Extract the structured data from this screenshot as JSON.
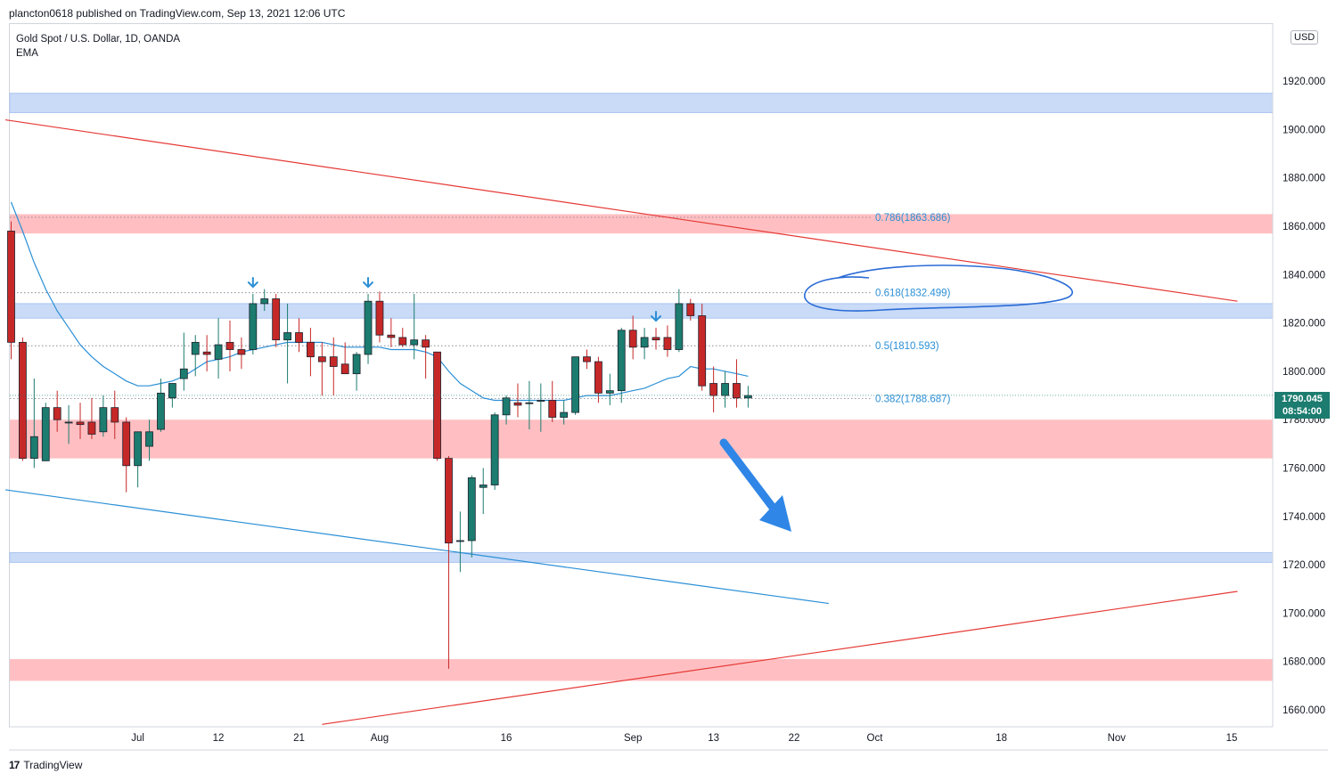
{
  "header": {
    "published": "plancton0618 published on TradingView.com, Sep 13, 2021 12:06 UTC"
  },
  "symbol": {
    "title": "Gold Spot / U.S. Dollar, 1D, OANDA",
    "indicator": "EMA"
  },
  "price_axis": {
    "currency": "USD",
    "last_price": "1790.045",
    "countdown": "08:54:00"
  },
  "footer": {
    "brand": "TradingView"
  },
  "colors": {
    "up": "#1b7c6f",
    "down": "#c62828",
    "ema": "#2a8fd6",
    "support_zone": "#c9dbf7",
    "resistance_zone": "#ffbfc2",
    "trendline_red": "#e53935",
    "trendline_blue": "#2a8fd6"
  },
  "chart_data": {
    "type": "candlestick",
    "title": "Gold Spot / U.S. Dollar, 1D, OANDA",
    "ylim": [
      1653,
      1944
    ],
    "y_ticks": [
      1660,
      1680,
      1700,
      1720,
      1740,
      1760,
      1780,
      1800,
      1820,
      1840,
      1860,
      1880,
      1900,
      1920
    ],
    "x_ticks": [
      {
        "label": "Jul",
        "i": 11
      },
      {
        "label": "12",
        "i": 18
      },
      {
        "label": "21",
        "i": 25
      },
      {
        "label": "Aug",
        "i": 32
      },
      {
        "label": "16",
        "i": 43
      },
      {
        "label": "Sep",
        "i": 54
      },
      {
        "label": "13",
        "i": 61
      },
      {
        "label": "22",
        "i": 68
      },
      {
        "label": "Oct",
        "i": 75
      },
      {
        "label": "18",
        "i": 86
      },
      {
        "label": "Nov",
        "i": 96
      },
      {
        "label": "15",
        "i": 106
      }
    ],
    "candles": [
      {
        "o": 1858,
        "h": 1862,
        "l": 1805,
        "c": 1812
      },
      {
        "o": 1812,
        "h": 1814,
        "l": 1763,
        "c": 1764
      },
      {
        "o": 1764,
        "h": 1797,
        "l": 1760,
        "c": 1773
      },
      {
        "o": 1763,
        "h": 1787,
        "l": 1763,
        "c": 1785
      },
      {
        "o": 1785,
        "h": 1792,
        "l": 1775,
        "c": 1780
      },
      {
        "o": 1779,
        "h": 1786,
        "l": 1770,
        "c": 1779
      },
      {
        "o": 1779,
        "h": 1787,
        "l": 1772,
        "c": 1778
      },
      {
        "o": 1779,
        "h": 1789,
        "l": 1772,
        "c": 1774
      },
      {
        "o": 1775,
        "h": 1790,
        "l": 1773,
        "c": 1785
      },
      {
        "o": 1785,
        "h": 1792,
        "l": 1772,
        "c": 1779
      },
      {
        "o": 1779,
        "h": 1781,
        "l": 1750,
        "c": 1761
      },
      {
        "o": 1761,
        "h": 1775,
        "l": 1752,
        "c": 1775
      },
      {
        "o": 1769,
        "h": 1780,
        "l": 1763,
        "c": 1775
      },
      {
        "o": 1776,
        "h": 1797,
        "l": 1775,
        "c": 1791
      },
      {
        "o": 1789,
        "h": 1795,
        "l": 1785,
        "c": 1795
      },
      {
        "o": 1797,
        "h": 1816,
        "l": 1792,
        "c": 1801
      },
      {
        "o": 1807,
        "h": 1815,
        "l": 1798,
        "c": 1812
      },
      {
        "o": 1808,
        "h": 1815,
        "l": 1800,
        "c": 1807
      },
      {
        "o": 1805,
        "h": 1822,
        "l": 1797,
        "c": 1811
      },
      {
        "o": 1812,
        "h": 1821,
        "l": 1800,
        "c": 1809
      },
      {
        "o": 1809,
        "h": 1814,
        "l": 1801,
        "c": 1807
      },
      {
        "o": 1809,
        "h": 1832,
        "l": 1807,
        "c": 1828
      },
      {
        "o": 1828,
        "h": 1834,
        "l": 1825,
        "c": 1830
      },
      {
        "o": 1830,
        "h": 1832,
        "l": 1810,
        "c": 1813
      },
      {
        "o": 1813,
        "h": 1828,
        "l": 1795,
        "c": 1816
      },
      {
        "o": 1816,
        "h": 1822,
        "l": 1808,
        "c": 1812
      },
      {
        "o": 1812,
        "h": 1818,
        "l": 1798,
        "c": 1806
      },
      {
        "o": 1806,
        "h": 1812,
        "l": 1790,
        "c": 1804
      },
      {
        "o": 1806,
        "h": 1814,
        "l": 1790,
        "c": 1802
      },
      {
        "o": 1803,
        "h": 1812,
        "l": 1799,
        "c": 1799
      },
      {
        "o": 1799,
        "h": 1808,
        "l": 1792,
        "c": 1807
      },
      {
        "o": 1807,
        "h": 1832,
        "l": 1803,
        "c": 1829
      },
      {
        "o": 1829,
        "h": 1833,
        "l": 1812,
        "c": 1815
      },
      {
        "o": 1815,
        "h": 1822,
        "l": 1810,
        "c": 1814
      },
      {
        "o": 1814,
        "h": 1818,
        "l": 1810,
        "c": 1811
      },
      {
        "o": 1811,
        "h": 1832,
        "l": 1805,
        "c": 1813
      },
      {
        "o": 1813,
        "h": 1815,
        "l": 1797,
        "c": 1810
      },
      {
        "o": 1808,
        "h": 1808,
        "l": 1763,
        "c": 1764
      },
      {
        "o": 1764,
        "h": 1765,
        "l": 1677,
        "c": 1729
      },
      {
        "o": 1730,
        "h": 1742,
        "l": 1717,
        "c": 1730
      },
      {
        "o": 1730,
        "h": 1757,
        "l": 1723,
        "c": 1756
      },
      {
        "o": 1752,
        "h": 1760,
        "l": 1741,
        "c": 1753
      },
      {
        "o": 1753,
        "h": 1783,
        "l": 1751,
        "c": 1782
      },
      {
        "o": 1782,
        "h": 1790,
        "l": 1778,
        "c": 1789
      },
      {
        "o": 1787,
        "h": 1795,
        "l": 1781,
        "c": 1786
      },
      {
        "o": 1787,
        "h": 1796,
        "l": 1776,
        "c": 1787
      },
      {
        "o": 1788,
        "h": 1795,
        "l": 1775,
        "c": 1788
      },
      {
        "o": 1788,
        "h": 1796,
        "l": 1779,
        "c": 1781
      },
      {
        "o": 1781,
        "h": 1788,
        "l": 1778,
        "c": 1783
      },
      {
        "o": 1783,
        "h": 1806,
        "l": 1782,
        "c": 1806
      },
      {
        "o": 1806,
        "h": 1809,
        "l": 1801,
        "c": 1804
      },
      {
        "o": 1804,
        "h": 1806,
        "l": 1787,
        "c": 1791
      },
      {
        "o": 1791,
        "h": 1799,
        "l": 1786,
        "c": 1792
      },
      {
        "o": 1792,
        "h": 1818,
        "l": 1787,
        "c": 1817
      },
      {
        "o": 1817,
        "h": 1823,
        "l": 1805,
        "c": 1810
      },
      {
        "o": 1810,
        "h": 1818,
        "l": 1805,
        "c": 1814
      },
      {
        "o": 1814,
        "h": 1818,
        "l": 1809,
        "c": 1813
      },
      {
        "o": 1814,
        "h": 1819,
        "l": 1806,
        "c": 1809
      },
      {
        "o": 1809,
        "h": 1834,
        "l": 1808,
        "c": 1828
      },
      {
        "o": 1828,
        "h": 1830,
        "l": 1821,
        "c": 1823
      },
      {
        "o": 1823,
        "h": 1828,
        "l": 1792,
        "c": 1794
      },
      {
        "o": 1795,
        "h": 1802,
        "l": 1783,
        "c": 1790
      },
      {
        "o": 1790,
        "h": 1800,
        "l": 1785,
        "c": 1795
      },
      {
        "o": 1795,
        "h": 1805,
        "l": 1785,
        "c": 1789
      },
      {
        "o": 1789,
        "h": 1794,
        "l": 1785,
        "c": 1790
      }
    ],
    "ema": [
      1870,
      1858,
      1845,
      1834,
      1825,
      1818,
      1811,
      1806,
      1802,
      1799,
      1796,
      1794,
      1794,
      1795,
      1796,
      1798,
      1801,
      1804,
      1805,
      1806,
      1808,
      1809,
      1810,
      1811,
      1812,
      1812,
      1812,
      1812,
      1811,
      1810,
      1810,
      1810,
      1810,
      1809,
      1809,
      1809,
      1808,
      1806,
      1800,
      1795,
      1792,
      1789,
      1788,
      1788,
      1788,
      1788,
      1788,
      1788,
      1788,
      1789,
      1790,
      1790,
      1790,
      1791,
      1792,
      1793,
      1795,
      1797,
      1798,
      1802,
      1801,
      1801,
      1800,
      1799,
      1798
    ],
    "zones": [
      {
        "kind": "support",
        "from": 1907,
        "to": 1915
      },
      {
        "kind": "resistance",
        "from": 1857,
        "to": 1865
      },
      {
        "kind": "support",
        "from": 1822,
        "to": 1828
      },
      {
        "kind": "resistance",
        "from": 1764,
        "to": 1780
      },
      {
        "kind": "support",
        "from": 1721,
        "to": 1725
      },
      {
        "kind": "resistance",
        "from": 1672,
        "to": 1681
      }
    ],
    "fib_levels": [
      {
        "label": "0.786(1863.686)",
        "value": 1863.686
      },
      {
        "label": "0.618(1832.499)",
        "value": 1832.499
      },
      {
        "label": "0.5(1810.593)",
        "value": 1810.593
      },
      {
        "label": "0.382(1788.687)",
        "value": 1788.687
      }
    ],
    "trendlines": [
      {
        "color": "red",
        "from": {
          "i": -0.5,
          "p": 1904
        },
        "to": {
          "i": 106.5,
          "p": 1829
        }
      },
      {
        "color": "red",
        "from": {
          "i": 27,
          "p": 1654
        },
        "to": {
          "i": 106.5,
          "p": 1709
        }
      },
      {
        "color": "blue",
        "from": {
          "i": -0.5,
          "p": 1751
        },
        "to": {
          "i": 71,
          "p": 1704
        }
      }
    ],
    "top_markers": [
      21,
      31,
      56
    ]
  }
}
